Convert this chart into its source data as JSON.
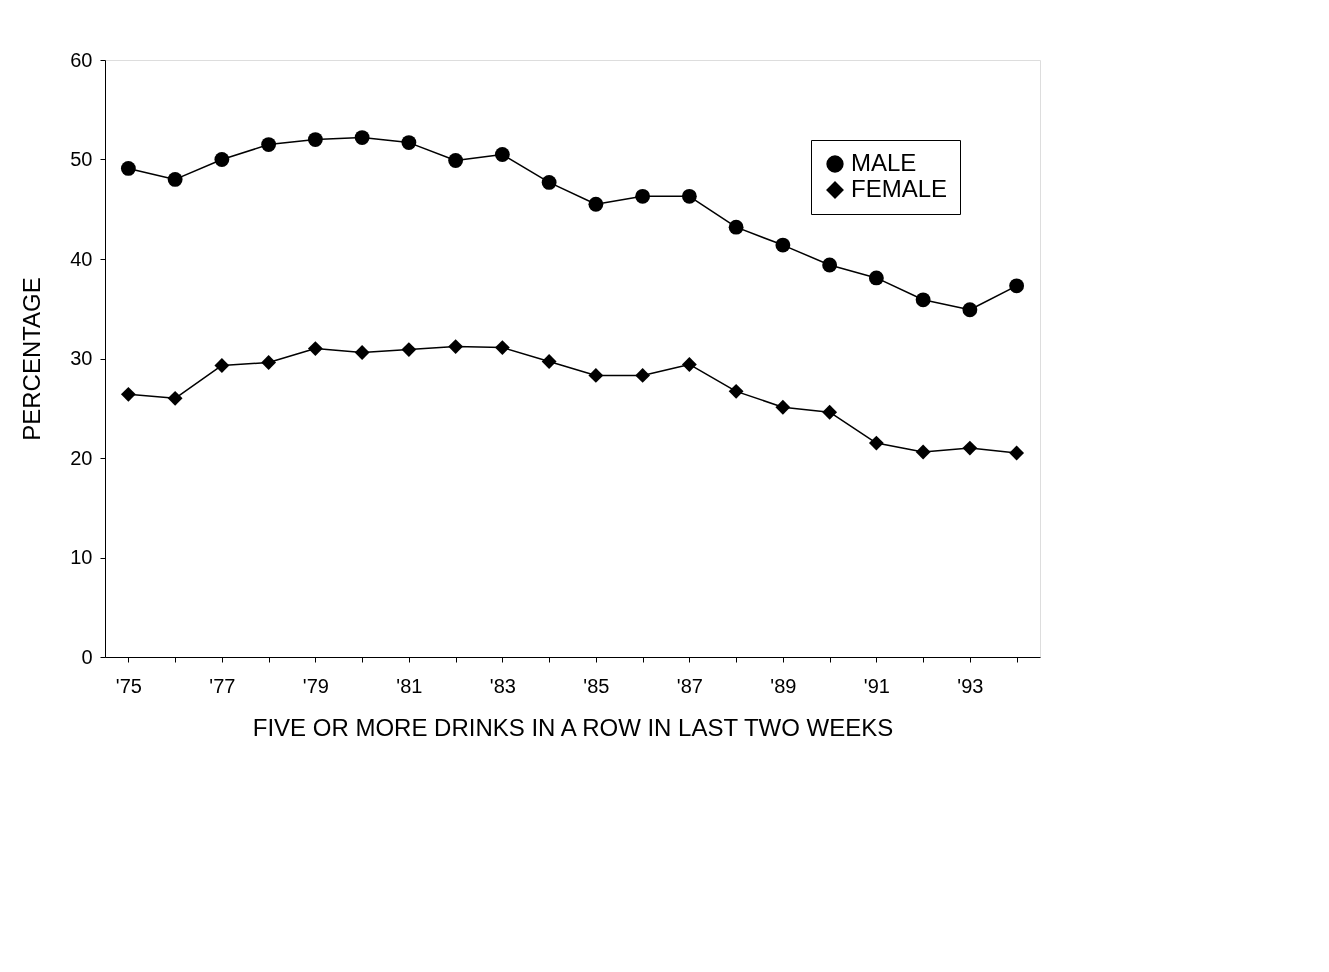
{
  "chart_data": {
    "type": "line",
    "xlabel": "FIVE OR MORE DRINKS IN A ROW IN LAST TWO WEEKS",
    "ylabel": "PERCENTAGE",
    "categories": [
      "'75",
      null,
      "'77",
      null,
      "'79",
      null,
      "'81",
      null,
      "'83",
      null,
      "'85",
      null,
      "'87",
      null,
      "'89",
      null,
      "'91",
      null,
      "'93",
      null
    ],
    "series": [
      {
        "name": "MALE",
        "color": "#000000",
        "marker": "circle",
        "values": [
          49.1,
          48.0,
          50.0,
          51.5,
          52.0,
          52.2,
          51.7,
          49.9,
          50.5,
          47.7,
          45.5,
          46.3,
          46.3,
          43.2,
          41.4,
          39.4,
          38.1,
          35.9,
          34.9,
          37.3
        ]
      },
      {
        "name": "FEMALE",
        "color": "#000000",
        "marker": "diamond",
        "values": [
          26.4,
          26.0,
          29.3,
          29.6,
          31.0,
          30.6,
          30.9,
          31.2,
          31.1,
          29.7,
          28.3,
          28.3,
          29.4,
          26.7,
          25.1,
          24.6,
          21.5,
          20.6,
          21.0,
          20.5
        ]
      }
    ],
    "ylim": [
      0,
      60
    ],
    "yticks": [
      0,
      10,
      20,
      30,
      40,
      50,
      60
    ],
    "grid": false,
    "legend": "top right",
    "line_style": "solid"
  }
}
